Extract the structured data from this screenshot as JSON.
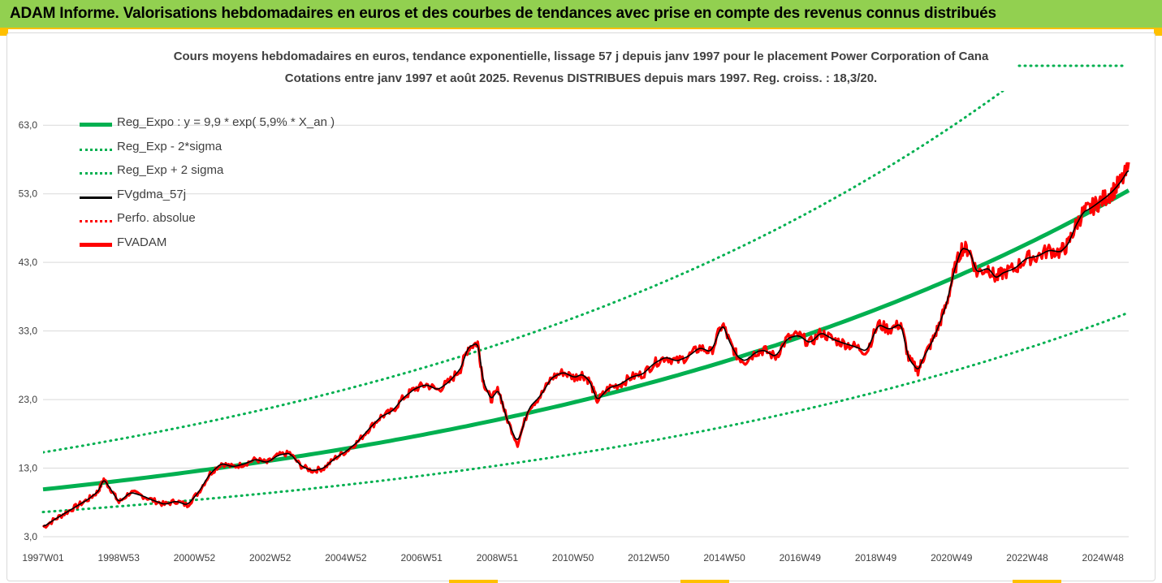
{
  "banner": {
    "title": "ADAM Informe. Valorisations hebdomadaires en euros et des courbes de tendances avec prise en compte des revenus connus distribués"
  },
  "colors": {
    "banner_bg": "#92d050",
    "accent_orange": "#ffc000",
    "trend_green": "#00b050",
    "price_red": "#ff0000",
    "smooth_black": "#000000"
  },
  "chart_data": {
    "type": "line",
    "title_line1": "Cours moyens hebdomadaires en euros, tendance exponentielle, lissage 57 j depuis janv 1997 pour le placement Power Corporation of Cana",
    "title_line2": "Cotations entre janv 1997 et août 2025. Revenus DISTRIBUES depuis mars 1997. Reg. croiss. : 18,3/20.",
    "xlabel": "",
    "ylabel": "",
    "ylim": [
      3,
      68
    ],
    "y_ticks": [
      "63,0",
      "53,0",
      "43,0",
      "33,0",
      "23,0",
      "13,0",
      "3,0"
    ],
    "x_ticks": [
      "1997W01",
      "1998W53",
      "2000W52",
      "2002W52",
      "2004W52",
      "2006W51",
      "2008W51",
      "2010W50",
      "2012W50",
      "2014W50",
      "2016W49",
      "2018W49",
      "2020W49",
      "2022W48",
      "2024W48"
    ],
    "x_range_years": [
      1997.0,
      2025.6
    ],
    "grid": true,
    "legend_position": "top-left",
    "legend": [
      {
        "label": "Reg_Expo : y = 9,9 * exp( 5,9% *  X_an )",
        "color": "#00b050",
        "style": "solid-thick"
      },
      {
        "label": "Reg_Exp - 2*sigma",
        "color": "#00b050",
        "style": "dotted"
      },
      {
        "label": "Reg_Exp + 2 sigma",
        "color": "#00b050",
        "style": "dotted"
      },
      {
        "label": "FVgdma_57j",
        "color": "#000000",
        "style": "solid"
      },
      {
        "label": "Perfo. absolue",
        "color": "#ff0000",
        "style": "dotted"
      },
      {
        "label": "FVADAM",
        "color": "#ff0000",
        "style": "solid-thick"
      }
    ],
    "series": [
      {
        "name": "Reg_Expo : y = 9,9 * exp( 5,9% *  X_an )",
        "curve": "exponential",
        "a": 9.9,
        "rate": 0.059
      },
      {
        "name": "Reg_Exp - 2*sigma",
        "curve": "exponential",
        "a": 6.6,
        "rate": 0.059
      },
      {
        "name": "Reg_Exp + 2 sigma",
        "curve": "exponential",
        "a": 15.3,
        "rate": 0.059
      },
      {
        "name": "FVADAM",
        "x": [
          1997.0,
          1997.3,
          1997.6,
          1997.9,
          1998.2,
          1998.45,
          1998.6,
          1998.8,
          1999.0,
          1999.3,
          1999.6,
          1999.9,
          2000.2,
          2000.5,
          2000.8,
          2001.1,
          2001.4,
          2001.7,
          2002.0,
          2002.3,
          2002.6,
          2002.9,
          2003.2,
          2003.5,
          2003.8,
          2004.1,
          2004.4,
          2004.7,
          2005.0,
          2005.3,
          2005.6,
          2005.9,
          2006.2,
          2006.5,
          2006.8,
          2007.1,
          2007.4,
          2007.7,
          2008.0,
          2008.2,
          2008.45,
          2008.6,
          2008.8,
          2009.0,
          2009.2,
          2009.5,
          2009.8,
          2010.1,
          2010.4,
          2010.7,
          2011.0,
          2011.2,
          2011.4,
          2011.6,
          2011.9,
          2012.2,
          2012.5,
          2012.8,
          2013.1,
          2013.4,
          2013.7,
          2014.0,
          2014.3,
          2014.6,
          2014.9,
          2015.1,
          2015.3,
          2015.5,
          2015.8,
          2016.0,
          2016.3,
          2016.6,
          2016.9,
          2017.2,
          2017.5,
          2017.8,
          2018.1,
          2018.4,
          2018.7,
          2019.0,
          2019.3,
          2019.6,
          2019.8,
          2020.05,
          2020.2,
          2020.4,
          2020.6,
          2020.8,
          2021.0,
          2021.2,
          2021.4,
          2021.6,
          2021.9,
          2022.1,
          2022.3,
          2022.6,
          2022.9,
          2023.2,
          2023.5,
          2023.8,
          2024.0,
          2024.2,
          2024.4,
          2024.6,
          2024.8,
          2025.0,
          2025.2,
          2025.4,
          2025.6
        ],
        "y": [
          4.4,
          5.5,
          6.5,
          7.5,
          8.5,
          9.6,
          11.4,
          9.8,
          8.0,
          9.5,
          9.0,
          8.3,
          7.7,
          8.2,
          7.6,
          9.5,
          12.2,
          13.7,
          13.2,
          13.6,
          14.3,
          13.8,
          14.9,
          15.2,
          13.3,
          12.6,
          13.0,
          14.5,
          15.5,
          16.9,
          18.8,
          20.5,
          21.3,
          23.3,
          24.6,
          25.2,
          24.4,
          25.6,
          27.5,
          30.6,
          31.3,
          25.6,
          23.0,
          24.5,
          20.5,
          16.5,
          21.8,
          23.5,
          26.2,
          27.0,
          26.2,
          26.7,
          25.7,
          22.8,
          24.7,
          25.2,
          26.3,
          26.7,
          28.3,
          29.2,
          28.6,
          29.3,
          30.6,
          29.9,
          34.1,
          31.2,
          29.2,
          28.6,
          30.0,
          30.2,
          29.2,
          31.9,
          32.4,
          31.2,
          32.8,
          31.8,
          31.2,
          30.7,
          30.0,
          34.0,
          33.2,
          34.1,
          29.0,
          27.2,
          29.2,
          31.2,
          33.8,
          36.9,
          41.7,
          45.1,
          44.8,
          41.5,
          42.2,
          40.7,
          41.5,
          42.1,
          43.6,
          43.9,
          44.8,
          44.5,
          45.6,
          48.3,
          50.3,
          50.9,
          51.7,
          52.5,
          53.5,
          54.8,
          56.6
        ]
      }
    ]
  }
}
